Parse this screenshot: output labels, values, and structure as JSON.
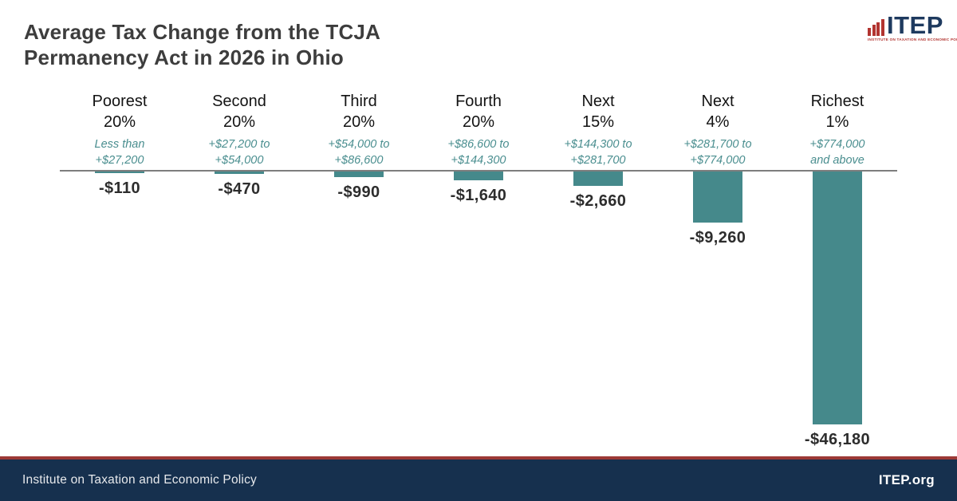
{
  "title": "Average Tax Change from the TCJA Permanency Act in 2026 in Ohio",
  "logo": {
    "text": "ITEP",
    "subtext": "INSTITUTE ON TAXATION AND ECONOMIC POLICY"
  },
  "footer": {
    "left": "Institute on Taxation and Economic Policy",
    "right": "ITEP.org"
  },
  "colors": {
    "bar": "#45898b",
    "range_text": "#4a8e8f",
    "title_text": "#3d3d3d",
    "baseline": "#7e7e7e",
    "footer_bg": "#16304e",
    "footer_border": "#9c3936",
    "logo_navy": "#1e3a5f",
    "logo_red": "#b23430"
  },
  "chart_data": {
    "type": "bar",
    "title": "Average Tax Change from the TCJA Permanency Act in 2026 in Ohio",
    "categories": [
      "Poorest 20%",
      "Second 20%",
      "Third 20%",
      "Fourth 20%",
      "Next 15%",
      "Next 4%",
      "Richest 1%"
    ],
    "category_lines": [
      [
        "Poorest",
        "20%"
      ],
      [
        "Second",
        "20%"
      ],
      [
        "Third",
        "20%"
      ],
      [
        "Fourth",
        "20%"
      ],
      [
        "Next",
        "15%"
      ],
      [
        "Next",
        "4%"
      ],
      [
        "Richest",
        "1%"
      ]
    ],
    "income_ranges": [
      [
        "Less than",
        "+$27,200"
      ],
      [
        "+$27,200 to",
        "+$54,000"
      ],
      [
        "+$54,000 to",
        "+$86,600"
      ],
      [
        "+$86,600 to",
        "+$144,300"
      ],
      [
        "+$144,300 to",
        "+$281,700"
      ],
      [
        "+$281,700 to",
        "+$774,000"
      ],
      [
        "+$774,000",
        "and above"
      ]
    ],
    "values": [
      -110,
      -470,
      -990,
      -1640,
      -2660,
      -9260,
      -46180
    ],
    "value_labels": [
      "-$110",
      "-$470",
      "-$990",
      "-$1,640",
      "-$2,660",
      "-$9,260",
      "-$46,180"
    ],
    "xlabel": "",
    "ylabel": "",
    "ylim": [
      -46180,
      0
    ],
    "bar_color": "#45898b",
    "orientation": "vertical",
    "grid": false,
    "legend": false
  }
}
